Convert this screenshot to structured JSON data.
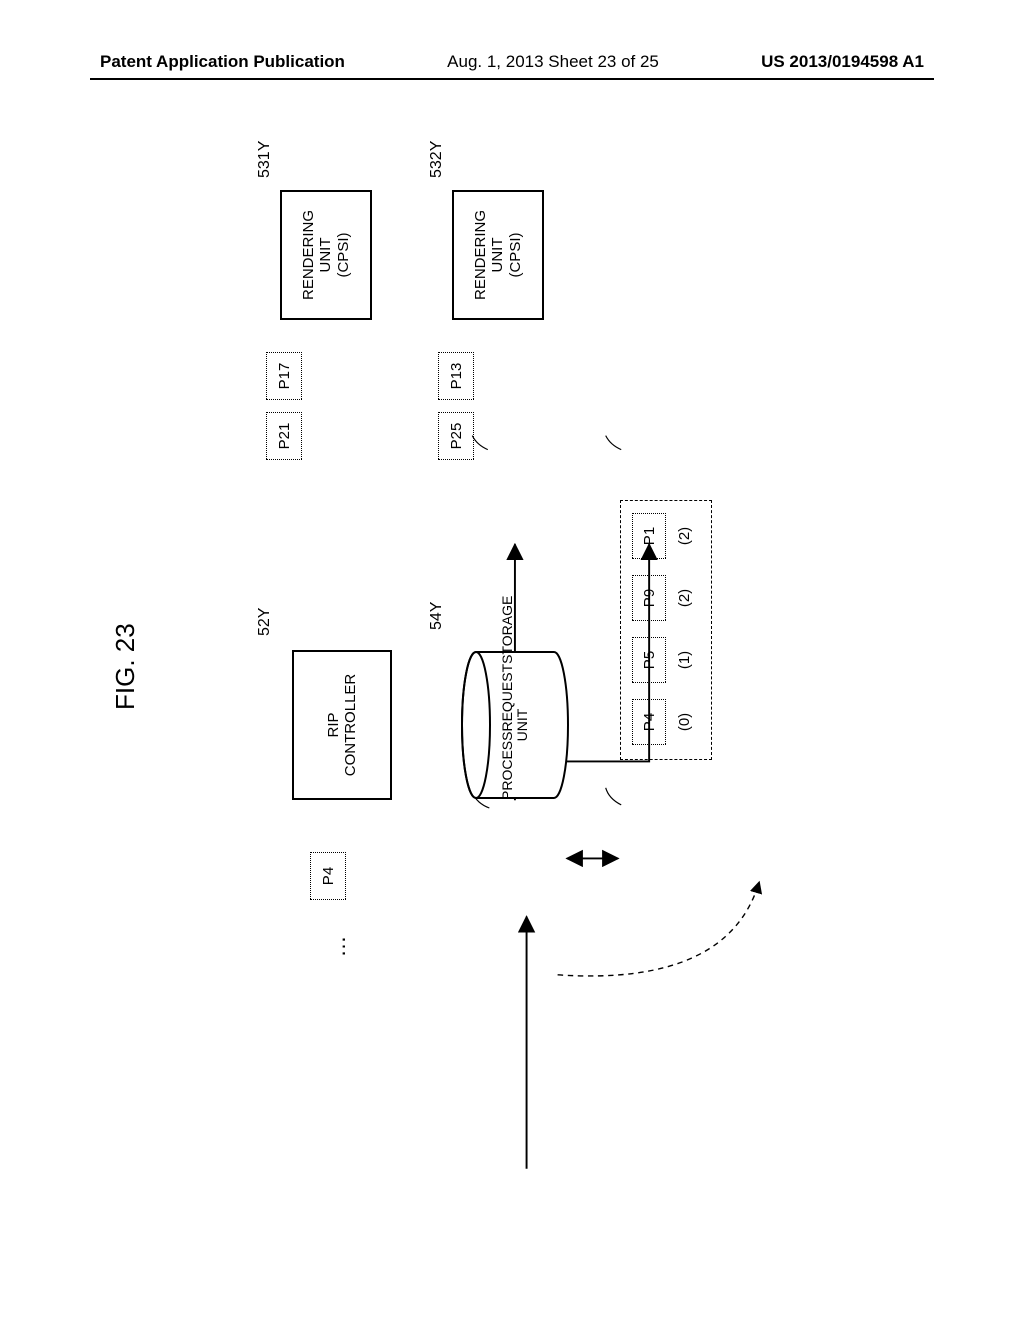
{
  "header": {
    "left": "Patent Application Publication",
    "center": "Aug. 1, 2013  Sheet 23 of 25",
    "right": "US 2013/0194598 A1"
  },
  "figure_label": "FIG. 23",
  "blocks": {
    "rip_controller": {
      "label": "RIP\nCONTROLLER",
      "ref": "52Y"
    },
    "storage": {
      "label": "PROCESS\nREQUEST\nSTORAGE UNIT",
      "ref": "54Y"
    },
    "render1": {
      "label": "RENDERING\nUNIT\n(CPSI)",
      "ref": "531Y"
    },
    "render2": {
      "label": "RENDERING\nUNIT\n(CPSI)",
      "ref": "532Y"
    }
  },
  "pages": {
    "incoming": "P4",
    "queue": [
      {
        "label": "P4",
        "paren": "(0)"
      },
      {
        "label": "P5",
        "paren": "(1)"
      },
      {
        "label": "P9",
        "paren": "(2)"
      },
      {
        "label": "P1",
        "paren": "(2)"
      }
    ],
    "r1a": "P21",
    "r1b": "P17",
    "r2a": "P25",
    "r2b": "P13"
  },
  "style": {
    "bg": "#ffffff",
    "stroke": "#000000"
  }
}
